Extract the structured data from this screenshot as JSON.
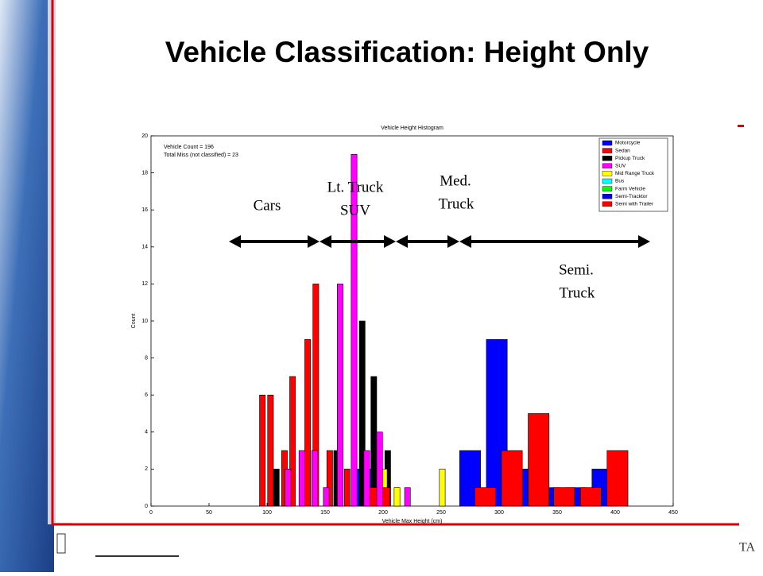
{
  "slide_title": "Vehicle Classification: Height Only",
  "footer_text": "TA",
  "chart_data": {
    "type": "histogram",
    "title": "Vehicle Height Histogram",
    "x_label": "Vehicle Max Height (cm)",
    "y_label": "Count",
    "notes": [
      "Vehicle Count = 196",
      "Total Miss (not classified) = 23"
    ],
    "xlim": [
      0,
      450
    ],
    "xticks": [
      0,
      50,
      100,
      150,
      200,
      250,
      300,
      350,
      400,
      450
    ],
    "ylim": [
      0,
      20
    ],
    "yticks": [
      0,
      2,
      4,
      6,
      8,
      10,
      12,
      14,
      16,
      18,
      20
    ],
    "legend": "upper right",
    "series": [
      {
        "name": "Motorcycle",
        "color": "#0000ff",
        "wide": true,
        "x": [
          182
        ],
        "values": [
          2
        ]
      },
      {
        "name": "Sedan",
        "color": "#ff0000",
        "wide": false,
        "x": [
          96,
          103,
          115,
          122,
          135,
          142,
          154,
          169
        ],
        "values": [
          6,
          6,
          3,
          7,
          9,
          12,
          3,
          2
        ]
      },
      {
        "name": "Pickup Truck",
        "color": "#000000",
        "wide": false,
        "x": [
          108,
          160,
          182,
          192,
          204
        ],
        "values": [
          2,
          3,
          10,
          7,
          3
        ]
      },
      {
        "name": "SUV",
        "color": "#ff00ff",
        "wide": false,
        "x": [
          118,
          130,
          141,
          151,
          163,
          175,
          186,
          197,
          221
        ],
        "values": [
          2,
          3,
          3,
          1,
          12,
          19,
          3,
          4,
          1
        ]
      },
      {
        "name": "Mid Range Truck",
        "color": "#ffff00",
        "wide": false,
        "x": [
          201,
          212,
          251
        ],
        "values": [
          2,
          1,
          2
        ]
      },
      {
        "name": "Bus",
        "color": "#00ffff",
        "wide": false,
        "x": [],
        "values": []
      },
      {
        "name": "Farm Vehicle",
        "color": "#00ff00",
        "wide": false,
        "x": [],
        "values": []
      },
      {
        "name": "Semi-Tracktor",
        "color": "#0000ff",
        "wide": true,
        "x": [
          275,
          298,
          321,
          344,
          366,
          389
        ],
        "values": [
          3,
          9,
          2,
          1,
          1,
          2
        ]
      },
      {
        "name": "Semi with Trailer",
        "color": "#ff0000",
        "wide": true,
        "x": [
          197,
          288,
          311,
          334,
          356,
          379,
          402
        ],
        "values": [
          1,
          1,
          3,
          5,
          1,
          1,
          3
        ]
      }
    ],
    "annotations": [
      "Cars",
      "Lt. Truck",
      "SUV",
      "Med.",
      "Truck",
      "Semi.",
      "Truck"
    ]
  }
}
